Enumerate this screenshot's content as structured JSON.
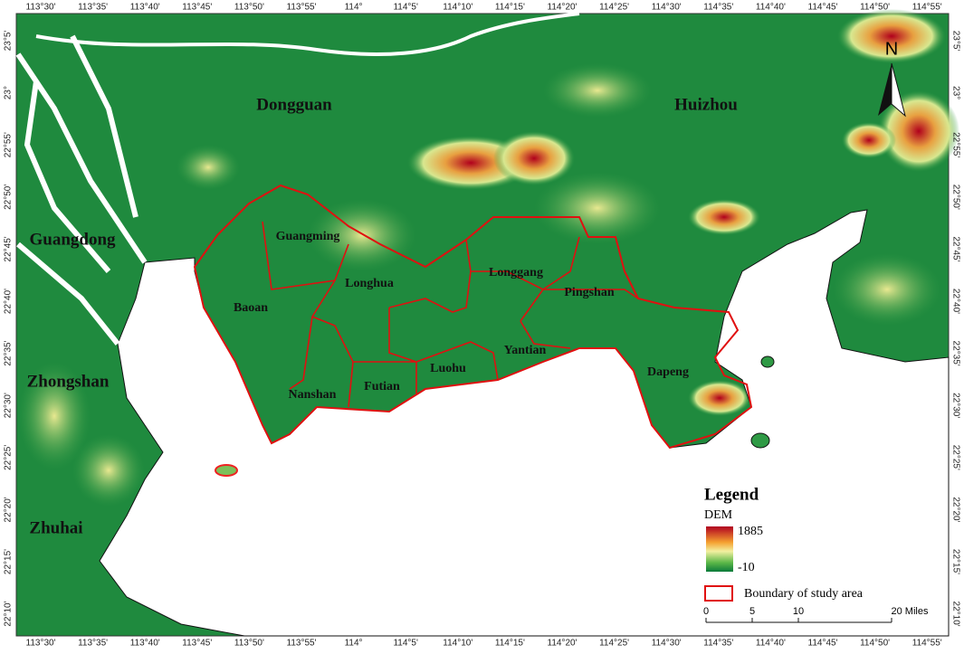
{
  "longitude_labels": [
    "113°30'",
    "113°35'",
    "113°40'",
    "113°45'",
    "113°50'",
    "113°55'",
    "114°",
    "114°5'",
    "114°10'",
    "114°15'",
    "114°20'",
    "114°25'",
    "114°30'",
    "114°35'",
    "114°40'",
    "114°45'",
    "114°50'",
    "114°55'"
  ],
  "latitude_labels": [
    "23°5'",
    "23°",
    "22°55'",
    "22°50'",
    "22°45'",
    "22°40'",
    "22°35'",
    "22°30'",
    "22°25'",
    "22°20'",
    "22°15'",
    "22°10'"
  ],
  "regions": [
    "Dongguan",
    "Huizhou",
    "Guangdong",
    "Zhongshan",
    "Zhuhai"
  ],
  "districts": [
    "Guangming",
    "Baoan",
    "Longhua",
    "Longgang",
    "Pingshan",
    "Yantian",
    "Luohu",
    "Futian",
    "Nanshan",
    "Dapeng"
  ],
  "north": "N",
  "legend": {
    "title": "Legend",
    "layer": "DEM",
    "max": "1885",
    "min": "-10",
    "boundary": "Boundary of  study area"
  },
  "scale_bar": [
    "0",
    "5",
    "10",
    "20 Miles"
  ]
}
